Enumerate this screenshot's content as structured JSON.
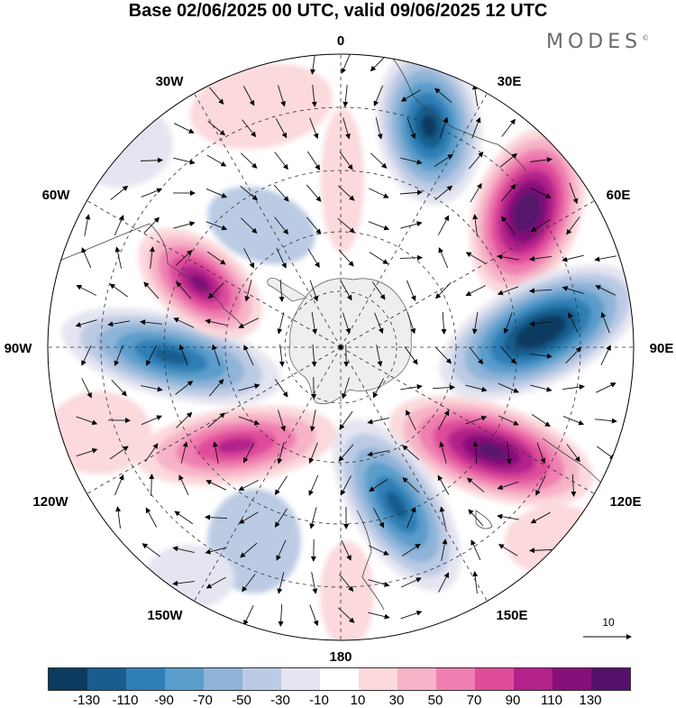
{
  "header": {
    "title": "Base 02/06/2025 00 UTC, valid 09/06/2025 12 UTC",
    "brand": "MODES",
    "brand_mark": "©"
  },
  "map": {
    "projection": "south-polar-stereographic",
    "longitude_labels": [
      "0",
      "30E",
      "60E",
      "90E",
      "120E",
      "150E",
      "180",
      "150W",
      "120W",
      "90W",
      "60W",
      "30W"
    ],
    "wind_reference": "10",
    "land_color": "#eeeeee",
    "features": [
      {
        "name": "anticyclone-south-atlantic-east",
        "type": "negative",
        "level": -110
      },
      {
        "name": "cyclone-indian-ocean-60E",
        "type": "positive",
        "level": 130
      },
      {
        "name": "anticyclone-indian-ocean-90E",
        "type": "negative",
        "level": -130
      },
      {
        "name": "cyclone-south-australia",
        "type": "positive",
        "level": 110
      },
      {
        "name": "anticyclone-tasman-sea",
        "type": "negative",
        "level": -90
      },
      {
        "name": "cyclone-south-pacific-east",
        "type": "positive",
        "level": 70
      },
      {
        "name": "anticyclone-amundsen-sea",
        "type": "negative",
        "level": -90
      },
      {
        "name": "cyclone-drake-passage",
        "type": "positive",
        "level": 90
      }
    ]
  },
  "legend": {
    "labels": [
      "-130",
      "-110",
      "-90",
      "-70",
      "-50",
      "-30",
      "-10",
      "10",
      "30",
      "50",
      "70",
      "90",
      "110",
      "130"
    ],
    "colors": [
      "#0b3b5e",
      "#195d8f",
      "#2f7fb6",
      "#5a9dcb",
      "#8fb4d8",
      "#bccbe4",
      "#e5e5f1",
      "#ffffff",
      "#fbd9dc",
      "#f7b3c7",
      "#ef7fb0",
      "#df4c9a",
      "#b3228b",
      "#861079",
      "#55126c"
    ]
  }
}
